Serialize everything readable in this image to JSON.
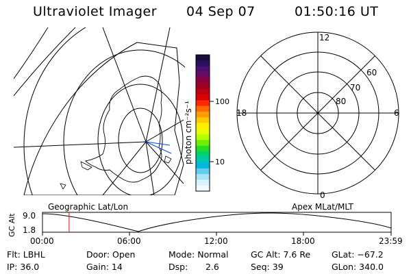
{
  "header": {
    "instrument": "Ultraviolet Imager",
    "date": "04 Sep 07",
    "time": "01:50:16 UT"
  },
  "colorbar": {
    "unit_label": "photon cm⁻²s⁻¹",
    "ticks": [
      "100",
      "10"
    ],
    "colors": [
      "#1a0a3a",
      "#2a0f5a",
      "#4a1070",
      "#6a0a60",
      "#8a0040",
      "#a00020",
      "#c00010",
      "#dd0000",
      "#ff2a00",
      "#ff6a00",
      "#ff9a00",
      "#ffc800",
      "#ffee00",
      "#e8ff00",
      "#b4ff00",
      "#6cf000",
      "#20e020",
      "#00d070",
      "#00c8b0",
      "#00b8e0",
      "#60d0f0",
      "#a8e4f8",
      "#dcf2fb",
      "#f4fbff"
    ]
  },
  "left_panel": {
    "label": "Geographic Lat/Lon"
  },
  "right_panel": {
    "label": "Apex MLat/MLT",
    "mlt_labels": {
      "top": "12",
      "bottom": "0",
      "left": "18",
      "right": "6"
    },
    "lat_labels": [
      "60",
      "70",
      "80"
    ]
  },
  "timeline": {
    "ylabel": "GC Alt",
    "y_ticks": [
      "9.0",
      "1.8"
    ],
    "x_ticks": [
      "00:00",
      "06:00",
      "12:00",
      "18:00",
      "23:59"
    ],
    "marker_time": "01:50",
    "marker_color": "#ff0000"
  },
  "info": {
    "flt": "Flt: LBHL",
    "door": "Door: Open",
    "mode": "Mode: Normal",
    "gc_alt": "GC Alt: 7.6 Re",
    "glat": "GLat: −67.2",
    "ip": "IP: 36.0",
    "gain": "Gain: 14",
    "dsp_label": "Dsp:",
    "dsp_value": "2.6",
    "seq": "Seq: 39",
    "glon": "GLon: 340.0"
  }
}
